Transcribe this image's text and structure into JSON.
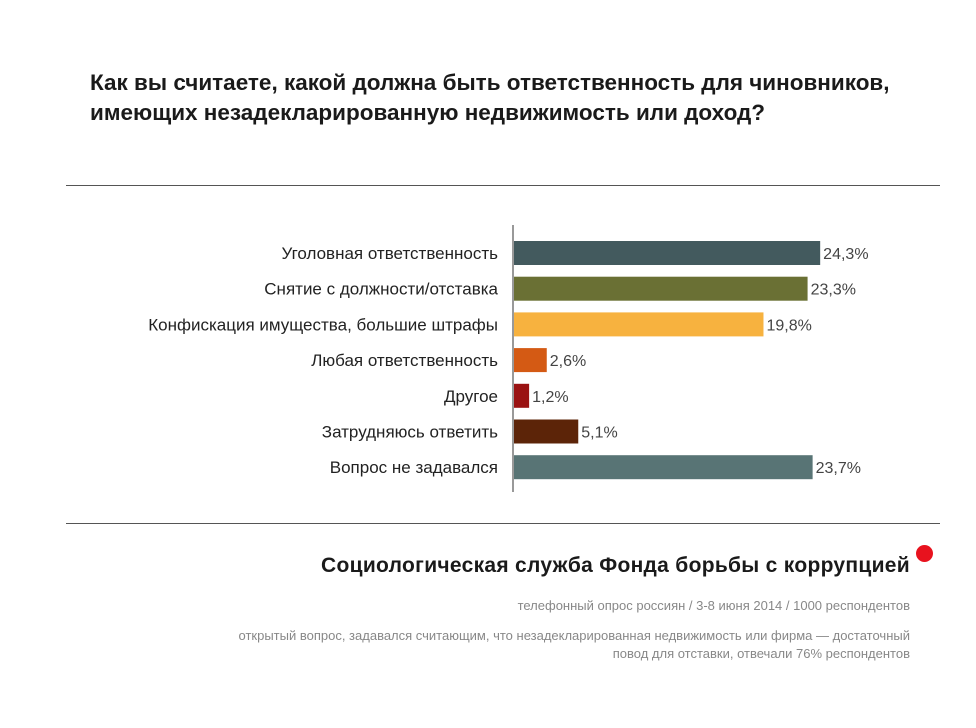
{
  "title": "Как вы считаете, какой должна быть ответственность для чиновников, имеющих незадекларированную недвижимость или доход?",
  "footer": {
    "organization": "Социологическая служба Фонда борьбы с коррупцией",
    "survey_info": "телефонный опрос россиян / 3-8 июня 2014 / 1000 респондентов",
    "question_note_line1": "открытый вопрос, задавался считающим, что незадекларированная недвижимость или фирма — достаточный",
    "question_note_line2": "повод для отставки, отвечали 76% респондентов",
    "brand_color": "#e8121e"
  },
  "chart_data": {
    "type": "bar",
    "orientation": "horizontal",
    "categories": [
      "Уголовная ответственность",
      "Снятие с должности/отставка",
      "Конфискация имущества, большие штрафы",
      "Любая ответственность",
      "Другое",
      "Затрудняюсь ответить",
      "Вопрос не задавался"
    ],
    "values": [
      24.3,
      23.3,
      19.8,
      2.6,
      1.2,
      5.1,
      23.7
    ],
    "value_labels": [
      "24,3%",
      "23,3%",
      "19,8%",
      "2,6%",
      "1,2%",
      "5,1%",
      "23,7%"
    ],
    "colors": [
      "#435a5e",
      "#6a7034",
      "#f7b23f",
      "#d45a14",
      "#9a1212",
      "#5c2408",
      "#587475"
    ],
    "unit": "%",
    "xlim": [
      0,
      25
    ],
    "grid": false,
    "legend": "none"
  }
}
